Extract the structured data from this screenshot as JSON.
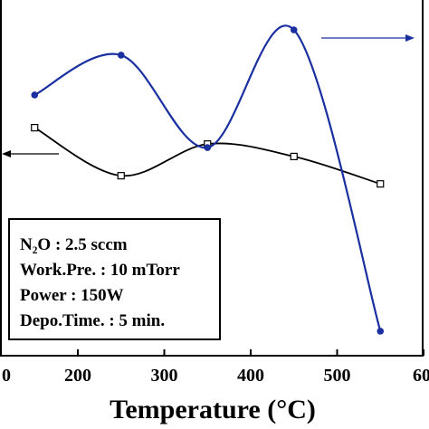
{
  "chart_data": {
    "type": "line",
    "xlabel": "Temperature (°C)",
    "x": [
      150,
      250,
      350,
      450,
      550
    ],
    "xlim": [
      100,
      600
    ],
    "xticks": [
      {
        "value": 100,
        "label": "0"
      },
      200,
      300,
      400,
      500,
      {
        "value": 600,
        "label": "60"
      }
    ],
    "ylim": [
      0,
      100
    ],
    "y2lim": [
      0,
      100
    ],
    "series": [
      {
        "color": "#000000",
        "marker": "square-open",
        "values": [
          64.1,
          50.6,
          59.5,
          56.0,
          48.3
        ]
      },
      {
        "color": "#1a2fa0",
        "marker": "circle-filled",
        "axis": "y2",
        "values": [
          73.3,
          84.5,
          58.5,
          91.6,
          6.9
        ]
      }
    ],
    "annotation": [
      "N₂O  : 2.5 sccm",
      "Work.Pre. : 10 mTorr",
      "Power  : 150W",
      "Depo.Time.  : 5 min."
    ]
  }
}
